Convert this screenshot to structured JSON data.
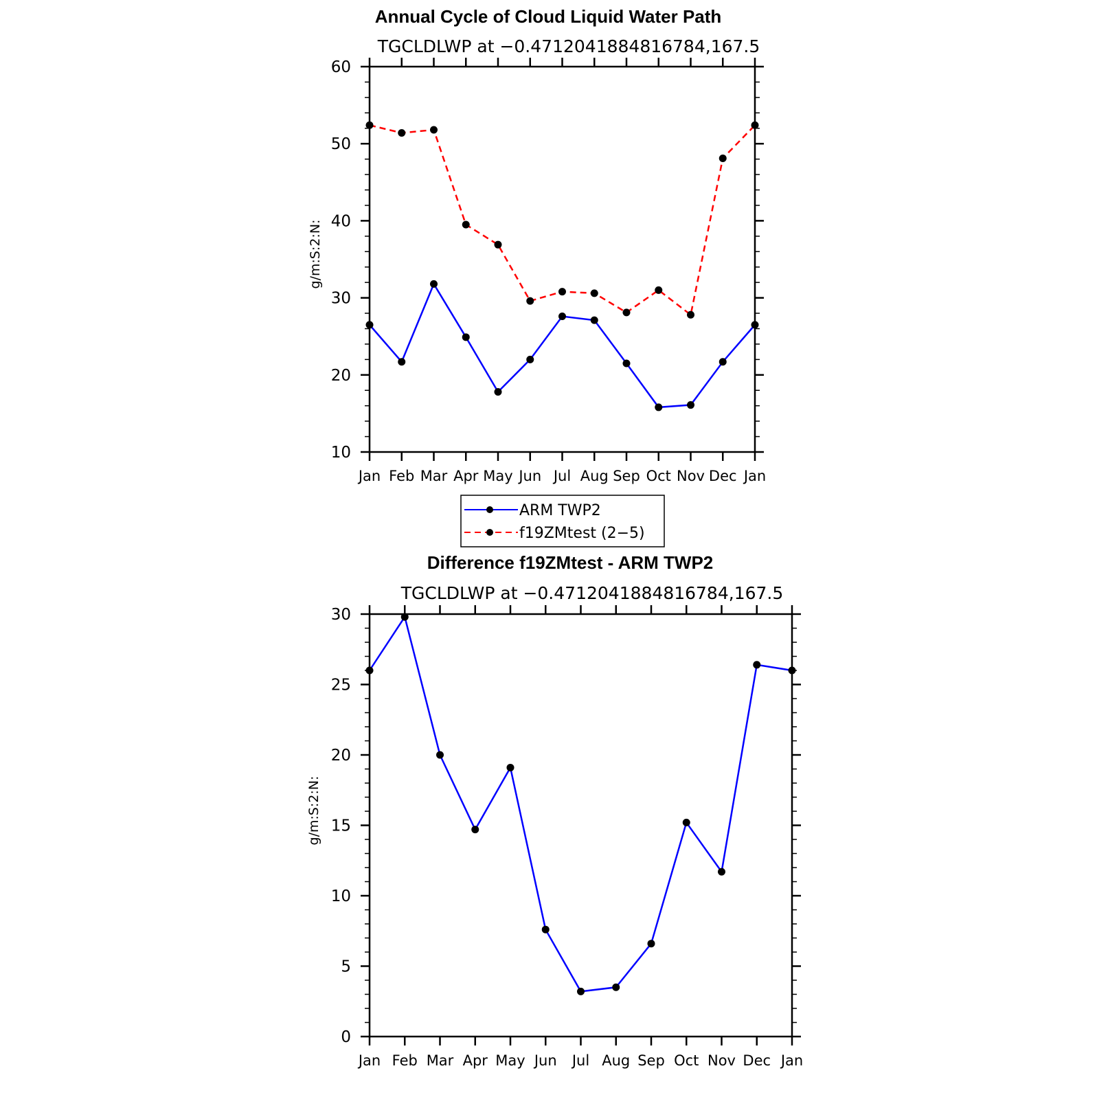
{
  "chart_data": [
    {
      "type": "line",
      "title": "Annual Cycle of Cloud Liquid Water Path",
      "subtitle": "TGCLDLWP at −0.4712041884816784,167.5",
      "ylabel": "g/m:S:2:N:",
      "xlabel": "",
      "categories": [
        "Jan",
        "Feb",
        "Mar",
        "Apr",
        "May",
        "Jun",
        "Jul",
        "Aug",
        "Sep",
        "Oct",
        "Nov",
        "Dec",
        "Jan"
      ],
      "ylim": [
        10,
        60
      ],
      "yticks": [
        10,
        20,
        30,
        40,
        50,
        60
      ],
      "series": [
        {
          "name": "ARM TWP2",
          "color": "#0000ff",
          "dash": "solid",
          "values": [
            26.5,
            21.7,
            31.8,
            24.9,
            17.8,
            22.0,
            27.6,
            27.1,
            21.5,
            15.8,
            16.1,
            21.7,
            26.5
          ]
        },
        {
          "name": "f19ZMtest (2−5)",
          "color": "#ff0000",
          "dash": "dashed",
          "values": [
            52.4,
            51.4,
            51.8,
            39.5,
            36.9,
            29.6,
            30.8,
            30.6,
            28.1,
            31.0,
            27.8,
            48.1,
            52.4
          ]
        }
      ],
      "legend": "below"
    },
    {
      "type": "line",
      "title": "Difference f19ZMtest - ARM TWP2",
      "subtitle": "TGCLDLWP at −0.4712041884816784,167.5",
      "ylabel": "g/m:S:2:N:",
      "xlabel": "",
      "categories": [
        "Jan",
        "Feb",
        "Mar",
        "Apr",
        "May",
        "Jun",
        "Jul",
        "Aug",
        "Sep",
        "Oct",
        "Nov",
        "Dec",
        "Jan"
      ],
      "ylim": [
        0,
        30
      ],
      "yticks": [
        0,
        5,
        10,
        15,
        20,
        25,
        30
      ],
      "series": [
        {
          "color": "#0000ff",
          "dash": "solid",
          "values": [
            26.0,
            29.8,
            20.0,
            14.7,
            19.1,
            7.6,
            3.2,
            3.5,
            6.6,
            15.2,
            11.7,
            26.4,
            26.0
          ]
        }
      ]
    }
  ]
}
